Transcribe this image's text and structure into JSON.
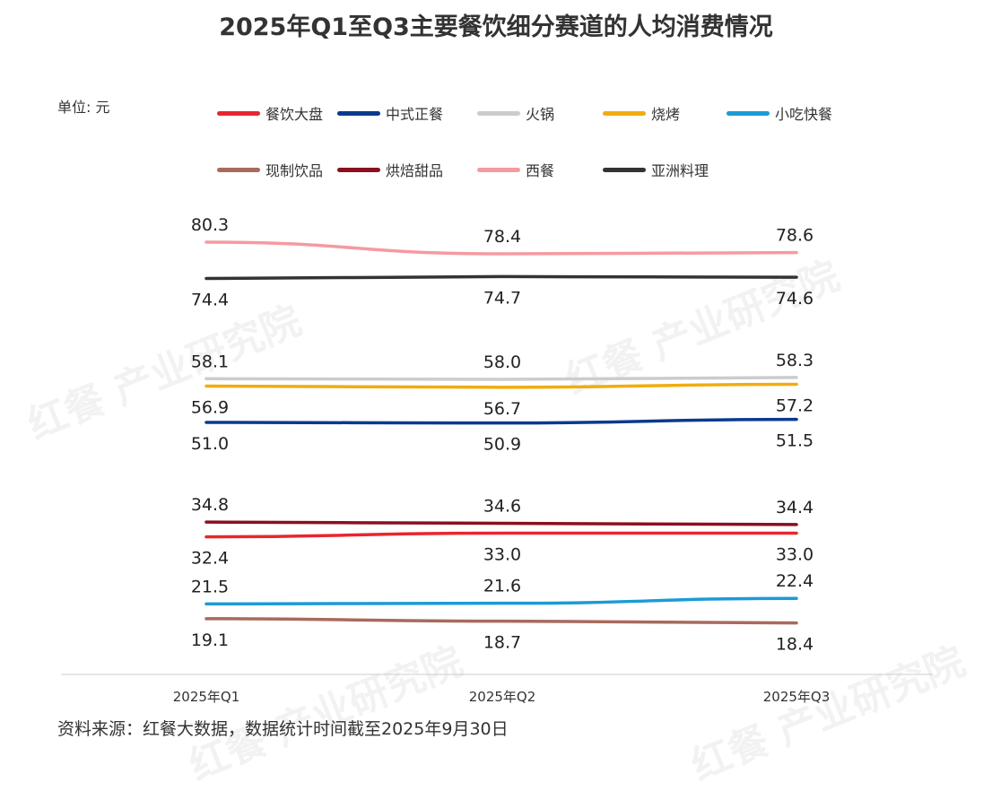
{
  "title": "2025年Q1至Q3主要餐饮细分赛道的人均消费情况",
  "unit_label": "单位: 元",
  "source": "资料来源：红餐大数据，数据统计时间截至2025年9月30日",
  "watermark": "红餐 产业研究院",
  "chart_data": {
    "type": "line",
    "title": "2025年Q1至Q3主要餐饮细分赛道的人均消费情况",
    "ylabel": "单位: 元",
    "categories": [
      "2025年Q1",
      "2025年Q2",
      "2025年Q3"
    ],
    "grid": false,
    "legend_placement": "top",
    "series": [
      {
        "name": "餐饮大盘",
        "color": "#e8262f",
        "values": [
          32.4,
          33.0,
          33.0
        ]
      },
      {
        "name": "中式正餐",
        "color": "#0a3a8c",
        "values": [
          51.0,
          50.9,
          51.5
        ]
      },
      {
        "name": "火锅",
        "color": "#cccccc",
        "values": [
          58.1,
          58.0,
          58.3
        ]
      },
      {
        "name": "烧烤",
        "color": "#f0ad10",
        "values": [
          56.9,
          56.7,
          57.2
        ]
      },
      {
        "name": "小吃快餐",
        "color": "#1b9bd6",
        "values": [
          21.5,
          21.6,
          22.4
        ]
      },
      {
        "name": "现制饮品",
        "color": "#a86a5c",
        "values": [
          19.1,
          18.7,
          18.4
        ]
      },
      {
        "name": "烘焙甜品",
        "color": "#8b0f1e",
        "values": [
          34.8,
          34.6,
          34.4
        ]
      },
      {
        "name": "西餐",
        "color": "#f59aa0",
        "values": [
          80.3,
          78.4,
          78.6
        ]
      },
      {
        "name": "亚洲料理",
        "color": "#333333",
        "values": [
          74.4,
          74.7,
          74.6
        ]
      }
    ]
  }
}
